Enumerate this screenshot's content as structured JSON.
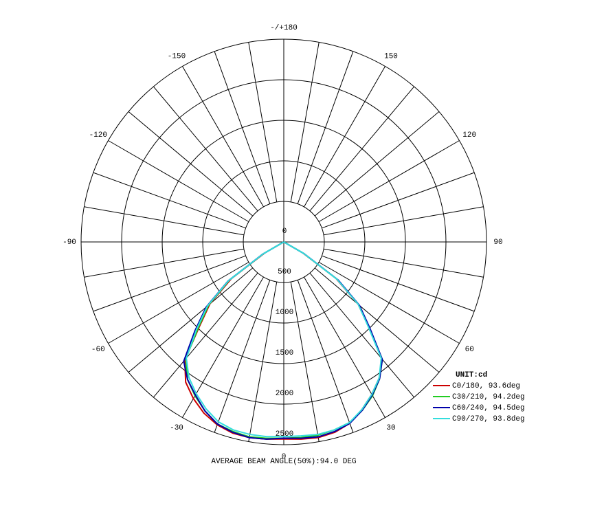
{
  "chart_data": {
    "type": "polar",
    "caption": "AVERAGE BEAM ANGLE(50%):94.0 DEG",
    "unit_label": "UNIT:cd",
    "rlim": [
      0,
      2500
    ],
    "rticks": [
      0,
      500,
      1000,
      1500,
      2000,
      2500
    ],
    "thetaticks": [
      {
        "value": 180,
        "label": "-/+180"
      },
      150,
      120,
      90,
      60,
      30,
      0,
      -30,
      -60,
      -90,
      -120,
      -150
    ],
    "x": [
      -65,
      -60,
      -55,
      -50,
      -45,
      -40,
      -35,
      -30,
      -25,
      -20,
      -15,
      -10,
      -5,
      0,
      5,
      10,
      15,
      20,
      25,
      30,
      35,
      40,
      45,
      50,
      55,
      60,
      65
    ],
    "series": [
      {
        "name": "C0/180, 93.6deg",
        "color": "#cc0000",
        "values": [
          0,
          270,
          790,
          1190,
          1470,
          1900,
          2110,
          2230,
          2330,
          2400,
          2440,
          2450,
          2440,
          2430,
          2440,
          2450,
          2430,
          2380,
          2280,
          2170,
          2050,
          1880,
          1480,
          1200,
          790,
          270,
          0
        ]
      },
      {
        "name": "C30/210, 94.2deg",
        "color": "#22cc22",
        "values": [
          0,
          290,
          820,
          1210,
          1490,
          1880,
          2070,
          2190,
          2300,
          2390,
          2420,
          2440,
          2430,
          2420,
          2420,
          2420,
          2400,
          2370,
          2290,
          2190,
          2060,
          1890,
          1490,
          1210,
          810,
          280,
          0
        ]
      },
      {
        "name": "C60/240, 94.5deg",
        "color": "#0000aa",
        "values": [
          0,
          300,
          840,
          1250,
          1550,
          1920,
          2070,
          2180,
          2300,
          2390,
          2430,
          2450,
          2440,
          2420,
          2430,
          2440,
          2420,
          2380,
          2290,
          2180,
          2060,
          1890,
          1500,
          1220,
          820,
          290,
          0
        ]
      },
      {
        "name": "C90/270, 93.8deg",
        "color": "#33dddd",
        "values": [
          0,
          290,
          830,
          1230,
          1520,
          1870,
          2040,
          2160,
          2270,
          2360,
          2400,
          2410,
          2410,
          2400,
          2400,
          2410,
          2400,
          2370,
          2280,
          2170,
          2050,
          1870,
          1470,
          1200,
          800,
          280,
          0
        ]
      }
    ]
  }
}
